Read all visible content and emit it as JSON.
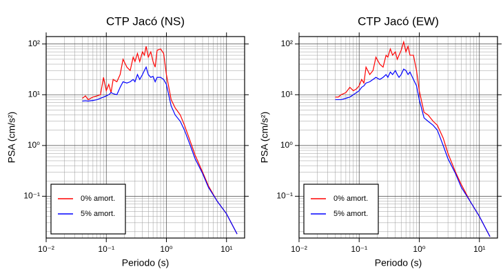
{
  "chart_data": [
    {
      "type": "line",
      "title": "CTP Jacó (NS)",
      "xlabel": "Periodo (s)",
      "ylabel": "PSA (cm/s²)",
      "xscale": "log",
      "yscale": "log",
      "grid": true,
      "legend": "lower left",
      "xlim": [
        0.01,
        20
      ],
      "ylim": [
        0.015,
        140
      ],
      "xticks": [
        {
          "value": 0.01,
          "label": "10⁻²"
        },
        {
          "value": 0.1,
          "label": "10⁻¹"
        },
        {
          "value": 1,
          "label": "10⁰"
        },
        {
          "value": 10,
          "label": "10¹"
        }
      ],
      "yticks": [
        {
          "value": 0.1,
          "label": "10⁻¹"
        },
        {
          "value": 1,
          "label": "10⁰"
        },
        {
          "value": 10,
          "label": "10¹"
        },
        {
          "value": 100,
          "label": "10²"
        }
      ],
      "x": [
        0.04,
        0.045,
        0.05,
        0.06,
        0.07,
        0.08,
        0.09,
        0.1,
        0.11,
        0.12,
        0.13,
        0.15,
        0.17,
        0.19,
        0.22,
        0.25,
        0.28,
        0.3,
        0.33,
        0.36,
        0.4,
        0.43,
        0.46,
        0.5,
        0.55,
        0.6,
        0.65,
        0.7,
        0.8,
        0.9,
        1.0,
        1.2,
        1.4,
        1.7,
        2,
        2.5,
        3,
        4,
        5,
        7,
        10,
        15
      ],
      "series": [
        {
          "name": "0% amort.",
          "color": "#ff0000",
          "values": [
            8.5,
            9.5,
            8,
            9,
            9.5,
            10,
            22,
            12,
            16,
            11,
            20,
            18,
            25,
            50,
            35,
            30,
            55,
            45,
            65,
            45,
            70,
            60,
            90,
            55,
            70,
            45,
            35,
            75,
            80,
            65,
            25,
            8,
            5.5,
            4,
            2.5,
            1.2,
            0.65,
            0.3,
            0.16,
            0.08,
            0.045,
            0.018
          ]
        },
        {
          "name": "5% amort.",
          "color": "#0000ff",
          "values": [
            7.5,
            7.6,
            7.5,
            7.7,
            8,
            8.5,
            9,
            9.5,
            10,
            11,
            10.5,
            10,
            14,
            18,
            17,
            18,
            20,
            18,
            25,
            20,
            25,
            30,
            35,
            25,
            22,
            23,
            18,
            22,
            22,
            20,
            16,
            6,
            4,
            3,
            2,
            1,
            0.55,
            0.28,
            0.15,
            0.08,
            0.045,
            0.018
          ]
        }
      ]
    },
    {
      "type": "line",
      "title": "CTP Jacó (EW)",
      "xlabel": "Periodo (s)",
      "ylabel": "PSA (cm/s²)",
      "xscale": "log",
      "yscale": "log",
      "grid": true,
      "legend": "lower left",
      "xlim": [
        0.01,
        20
      ],
      "ylim": [
        0.015,
        140
      ],
      "xticks": [
        {
          "value": 0.01,
          "label": "10⁻²"
        },
        {
          "value": 0.1,
          "label": "10⁻¹"
        },
        {
          "value": 1,
          "label": "10⁰"
        },
        {
          "value": 10,
          "label": "10¹"
        }
      ],
      "yticks": [
        {
          "value": 0.1,
          "label": "10⁻¹"
        },
        {
          "value": 1,
          "label": "10⁰"
        },
        {
          "value": 10,
          "label": "10¹"
        },
        {
          "value": 100,
          "label": "10²"
        }
      ],
      "x": [
        0.04,
        0.045,
        0.05,
        0.06,
        0.07,
        0.08,
        0.09,
        0.1,
        0.11,
        0.12,
        0.13,
        0.15,
        0.17,
        0.19,
        0.22,
        0.25,
        0.28,
        0.3,
        0.33,
        0.36,
        0.4,
        0.43,
        0.46,
        0.5,
        0.55,
        0.6,
        0.65,
        0.7,
        0.8,
        0.9,
        1.0,
        1.2,
        1.4,
        1.7,
        2,
        2.5,
        3,
        4,
        5,
        7,
        10,
        15
      ],
      "series": [
        {
          "name": "0% amort.",
          "color": "#ff0000",
          "values": [
            9,
            9,
            10,
            11,
            14,
            12,
            13,
            15,
            20,
            17,
            35,
            25,
            30,
            55,
            40,
            35,
            60,
            55,
            80,
            60,
            70,
            50,
            60,
            75,
            110,
            70,
            90,
            60,
            60,
            30,
            12,
            4.5,
            4,
            3,
            2.5,
            1.4,
            0.7,
            0.3,
            0.17,
            0.08,
            0.04,
            0.016
          ]
        },
        {
          "name": "5% amort.",
          "color": "#0000ff",
          "values": [
            8,
            8,
            8,
            8.5,
            9,
            10,
            11,
            12,
            14,
            15,
            17,
            18,
            20,
            22,
            20,
            22,
            25,
            22,
            28,
            25,
            30,
            25,
            22,
            25,
            32,
            30,
            25,
            28,
            20,
            15,
            8,
            3.5,
            3,
            2.5,
            2,
            1,
            0.55,
            0.28,
            0.15,
            0.08,
            0.04,
            0.016
          ]
        }
      ]
    }
  ]
}
